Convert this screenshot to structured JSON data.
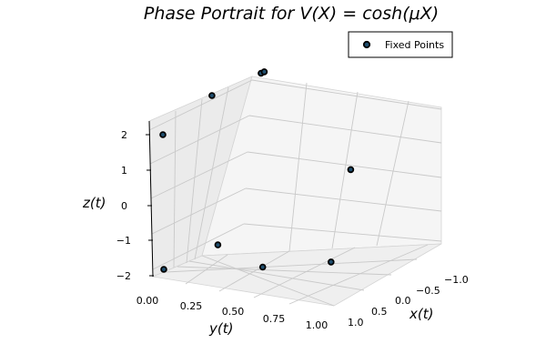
{
  "chart_data": {
    "type": "scatter",
    "projection": "3d",
    "title": "Phase Portrait for V(X) = cosh(μX)",
    "xlabel": "x(t)",
    "ylabel": "y(t)",
    "zlabel": "z(t)",
    "x_ticks": [
      "−1.0",
      "−0.5",
      "0.0",
      "0.5",
      "1.0"
    ],
    "y_ticks": [
      "0.00",
      "0.25",
      "0.50",
      "0.75",
      "1.00"
    ],
    "z_ticks": [
      "−2",
      "−1",
      "0",
      "1",
      "2"
    ],
    "legend": {
      "entries": [
        "Fixed Points"
      ],
      "placement": "top-right"
    },
    "grid": true,
    "series": [
      {
        "name": "Fixed Points",
        "points": [
          {
            "x": 1.0,
            "y": 0.0,
            "z": 2.0
          },
          {
            "x": 1.0,
            "y": 0.0,
            "z": -2.0
          },
          {
            "x": 0.8,
            "y": 0.55,
            "z": -1.9
          },
          {
            "x": 0.3,
            "y": 0.82,
            "z": -2.0
          },
          {
            "x": -1.0,
            "y": 0.55,
            "z": -0.2
          },
          {
            "x": -1.0,
            "y": 0.0,
            "z": 2.5
          },
          {
            "x": -1.0,
            "y": 0.02,
            "z": 2.55
          },
          {
            "x": 0.0,
            "y": 0.0,
            "z": 2.5
          },
          {
            "x": -0.1,
            "y": 0.0,
            "z": -2.0
          }
        ]
      }
    ]
  },
  "colors": {
    "marker_fill": "#1f4e6e",
    "marker_edge": "#000000",
    "pane_left": "#ebebeb",
    "pane_back": "#f4f4f4",
    "pane_floor": "#f0f0f0",
    "grid": "#c9c9c9"
  }
}
